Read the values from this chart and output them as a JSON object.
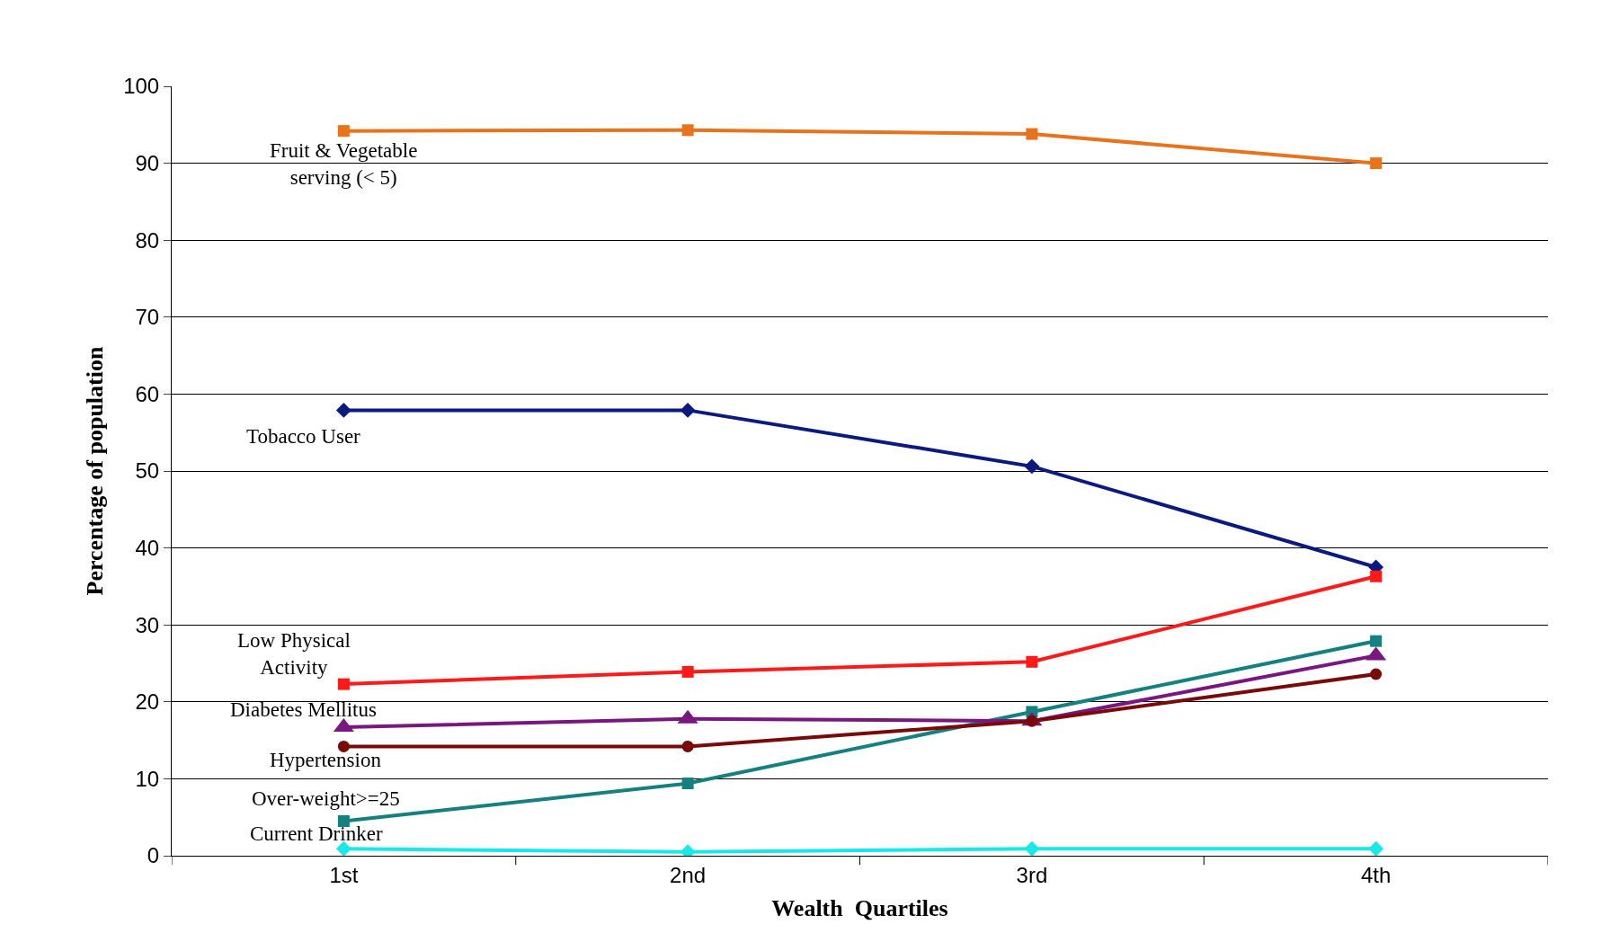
{
  "chart_data": {
    "type": "line",
    "xlabel": "Wealth  Quartiles",
    "ylabel": "Percentage of population",
    "categories": [
      "1st",
      "2nd",
      "3rd",
      "4th"
    ],
    "ylim": [
      0,
      100
    ],
    "yticks": [
      0,
      10,
      20,
      30,
      40,
      50,
      60,
      70,
      80,
      90,
      100
    ],
    "grid": "y",
    "legend": false,
    "line_style": "solid",
    "series": [
      {
        "name": "Fruit & Vegetable\nserving (< 5)",
        "color": "#e8731c",
        "marker": "square",
        "values": [
          94.2,
          94.3,
          93.8,
          90.0
        ]
      },
      {
        "name": "Tobacco User",
        "color": "#0a1a80",
        "marker": "diamond",
        "values": [
          57.9,
          57.9,
          50.6,
          37.5
        ]
      },
      {
        "name": "Low Physical\nActivity",
        "color": "#ff1a1a",
        "marker": "square",
        "values": [
          22.3,
          23.9,
          25.2,
          36.3
        ]
      },
      {
        "name": "Over-weight>=25",
        "color": "#158080",
        "marker": "square",
        "values": [
          4.5,
          9.4,
          18.7,
          27.9
        ]
      },
      {
        "name": "Diabetes Mellitus",
        "color": "#7a1680",
        "marker": "triangle",
        "values": [
          16.7,
          17.8,
          17.5,
          26.0
        ]
      },
      {
        "name": "Hypertension",
        "color": "#7a0a0a",
        "marker": "circle",
        "values": [
          14.2,
          14.2,
          17.5,
          23.6
        ]
      },
      {
        "name": "Current Drinker",
        "color": "#1ae8e8",
        "marker": "diamond",
        "values": [
          0.9,
          0.5,
          0.9,
          0.9
        ]
      }
    ]
  }
}
